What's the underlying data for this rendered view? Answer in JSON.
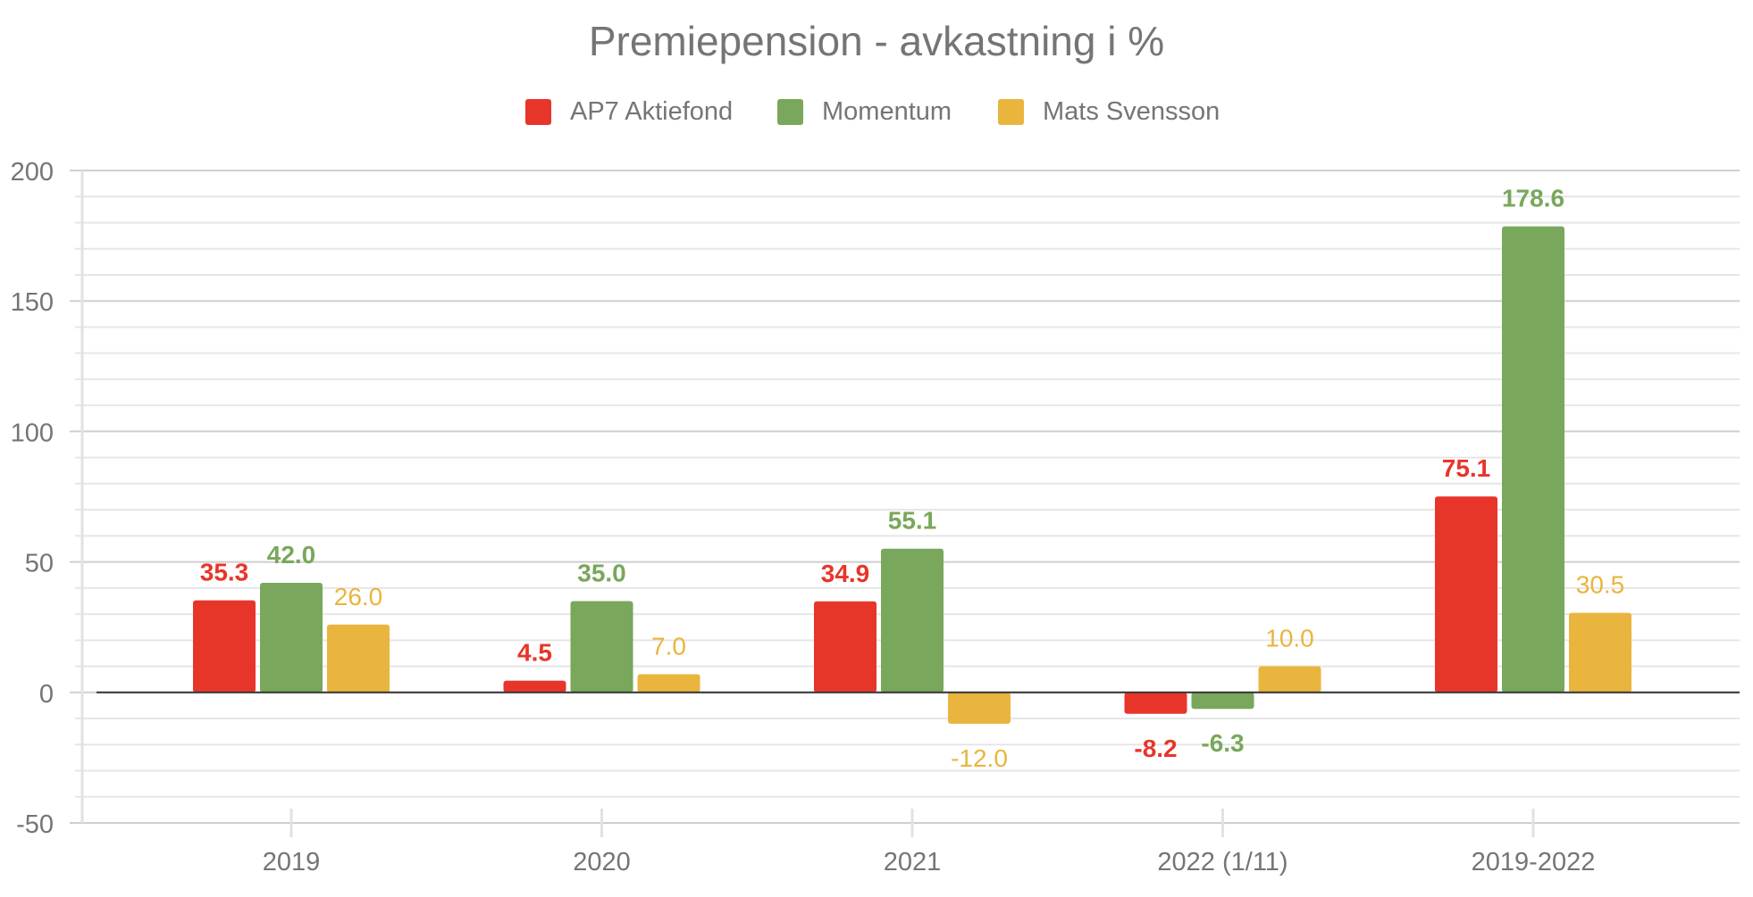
{
  "chart_data": {
    "type": "bar",
    "title": "Premiepension - avkastning i %",
    "xlabel": "",
    "ylabel": "",
    "categories": [
      "2019",
      "2020",
      "2021",
      "2022 (1/11)",
      "2019-2022"
    ],
    "series": [
      {
        "name": "AP7 Aktiefond",
        "color": "#E8352A",
        "values": [
          35.3,
          4.5,
          34.9,
          -8.2,
          75.1
        ]
      },
      {
        "name": "Momentum",
        "color": "#79A75B",
        "values": [
          42.0,
          35.0,
          55.1,
          -6.3,
          178.6
        ]
      },
      {
        "name": "Mats Svensson",
        "color": "#E9B53E",
        "values": [
          26.0,
          7.0,
          -12.0,
          10.0,
          30.5
        ]
      }
    ],
    "ylim": [
      -50,
      200
    ],
    "yticks": [
      -50,
      0,
      50,
      100,
      150,
      200
    ],
    "minor_step": 10,
    "grid": true,
    "legend_position": "top-center"
  }
}
